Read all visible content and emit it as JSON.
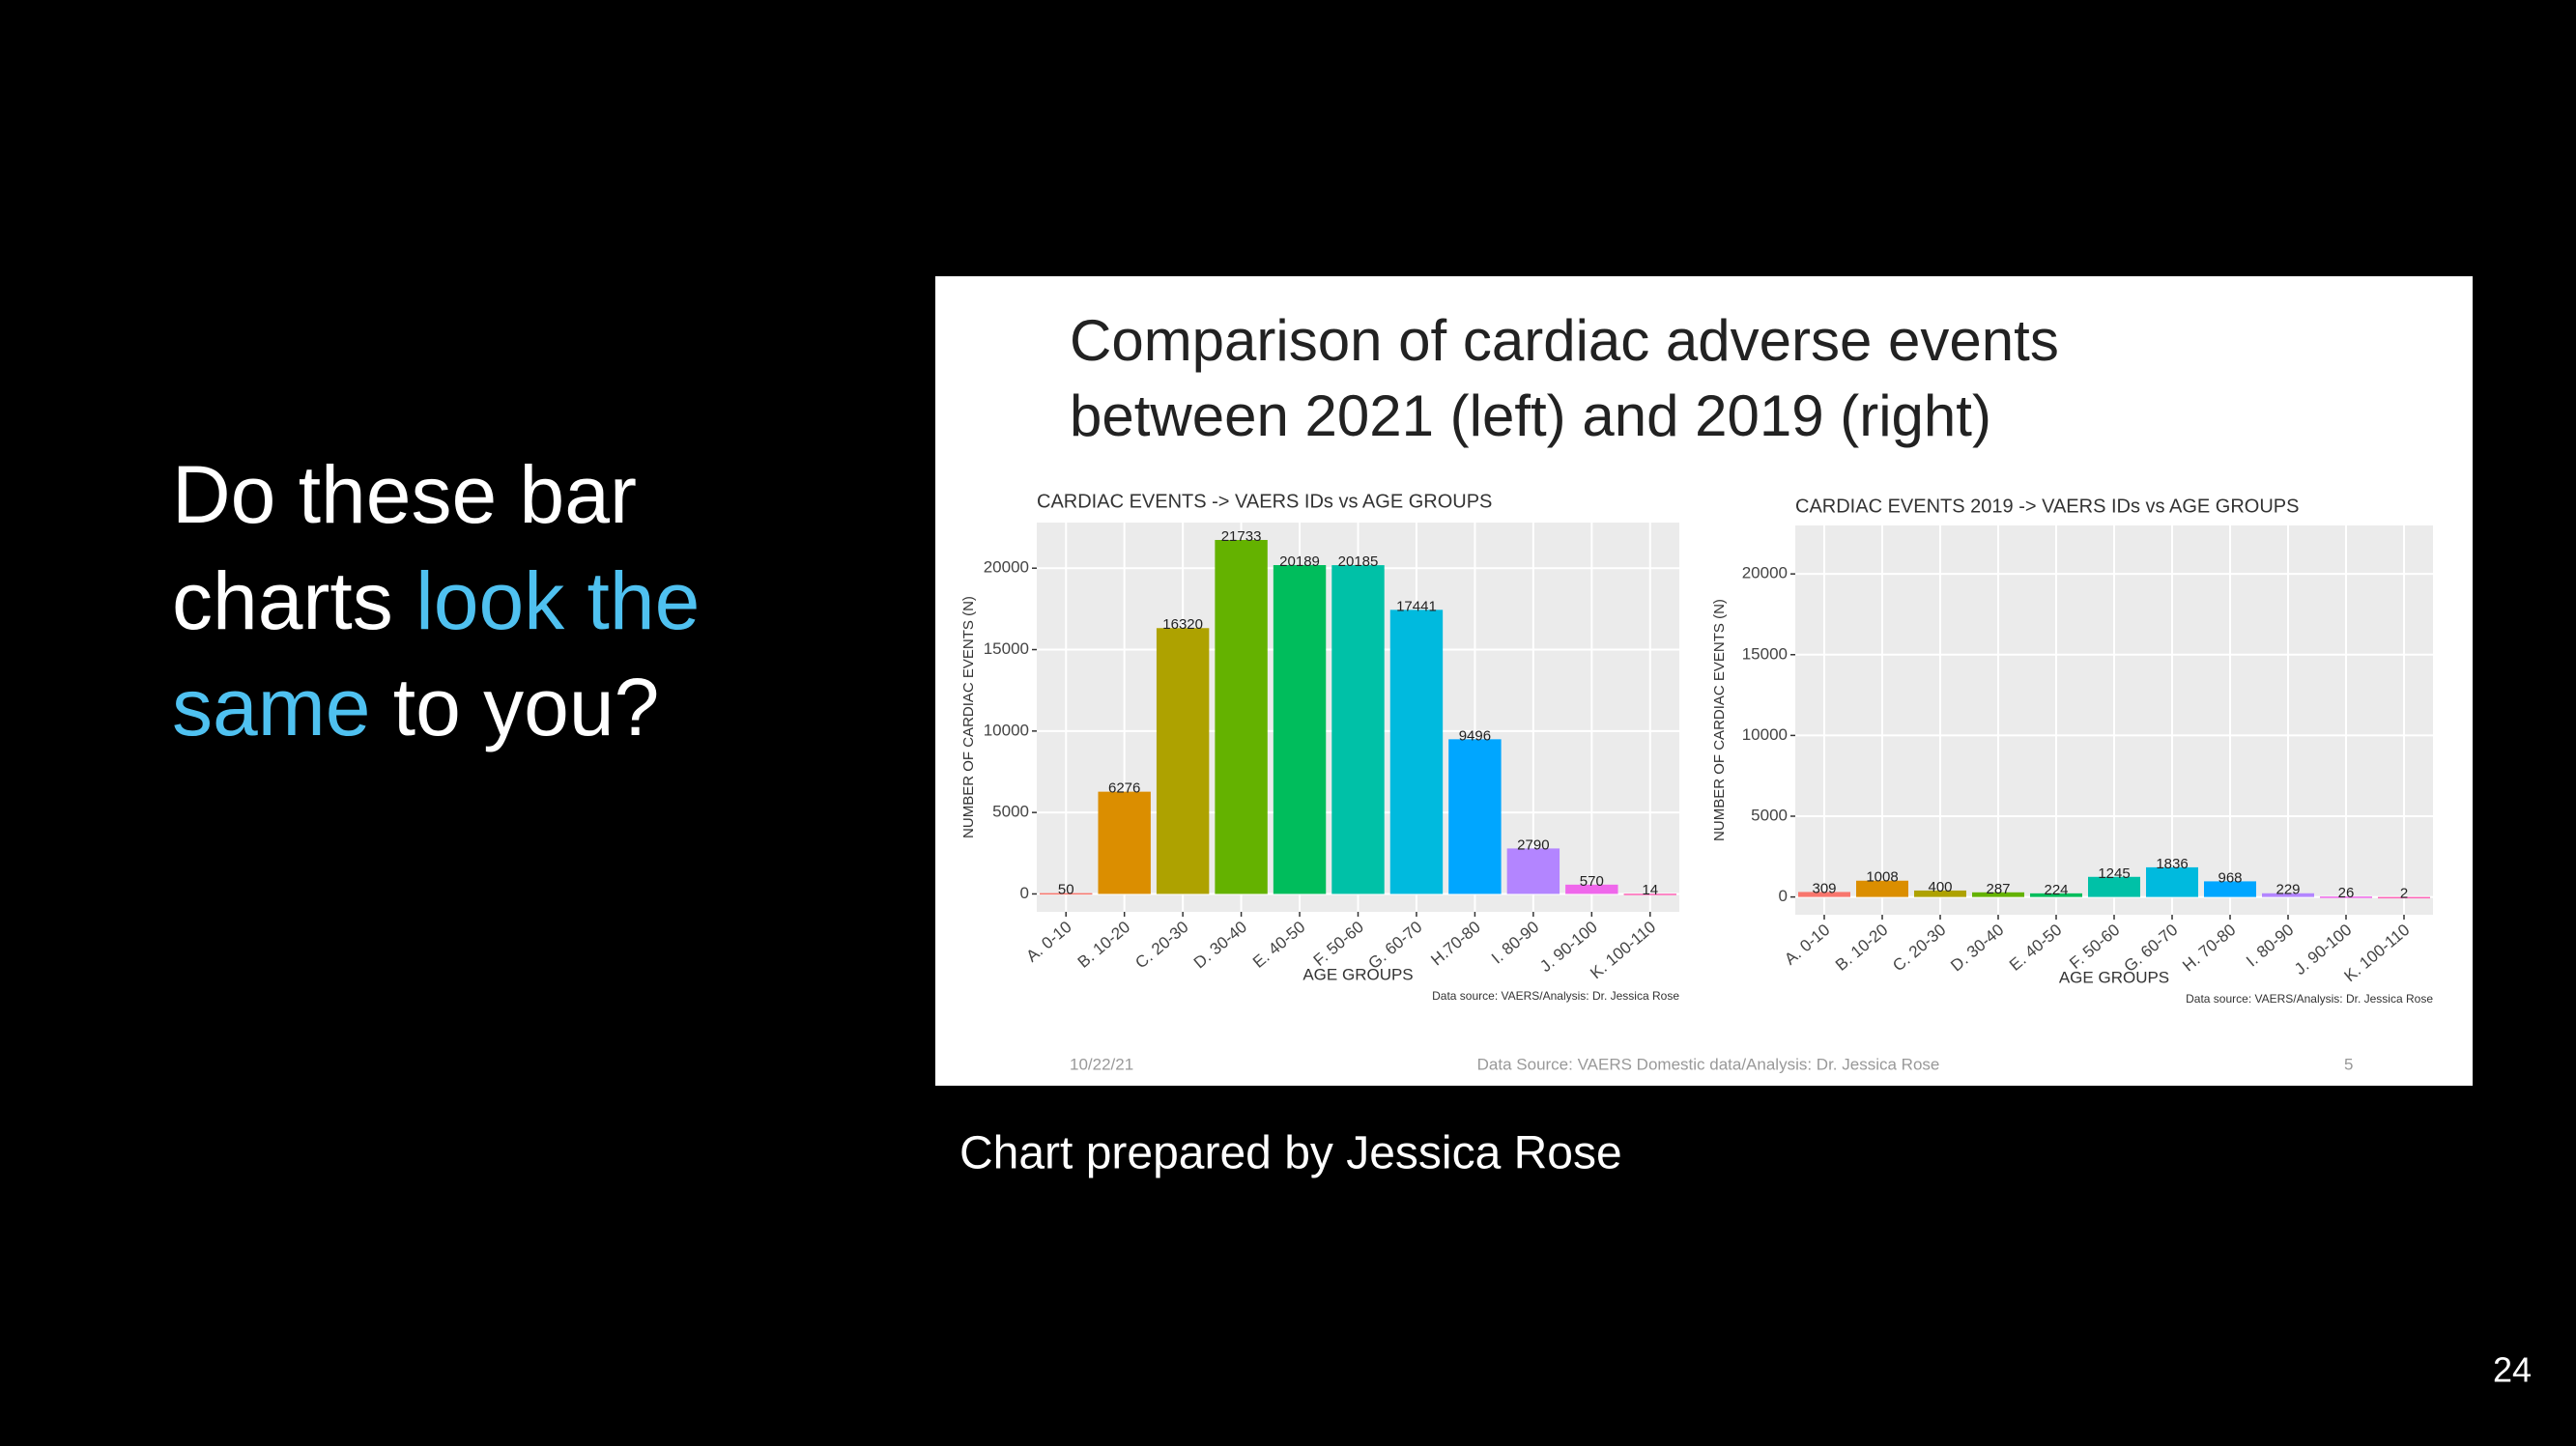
{
  "slide": {
    "question": [
      [
        {
          "text": "Do these bar",
          "highlight": false
        }
      ],
      [
        {
          "text": "charts ",
          "highlight": false
        },
        {
          "text": "look the",
          "highlight": true
        }
      ],
      [
        {
          "text": "same",
          "highlight": true
        },
        {
          "text": " to you?",
          "highlight": false
        }
      ]
    ],
    "highlight_color": "#4fc1f0",
    "caption": "Chart prepared by Jessica Rose",
    "page_number": "24"
  },
  "image": {
    "title": [
      "Comparison of cardiac adverse events",
      "between 2021 (left) and 2019 (right)"
    ],
    "footer_date": "10/22/21",
    "footer_source": "Data Source: VAERS Domestic data/Analysis: Dr. Jessica Rose",
    "footer_page": "5"
  },
  "chart_data": [
    {
      "type": "bar",
      "title": "CARDIAC EVENTS -> VAERS IDs vs AGE GROUPS",
      "x_label": "AGE GROUPS",
      "y_label": "NUMBER OF CARDIAC EVENTS (N)",
      "source": "Data source: VAERS/Analysis: Dr. Jessica Rose",
      "categories": [
        "A. 0-10",
        "B. 10-20",
        "C. 20-30",
        "D. 30-40",
        "E. 40-50",
        "F. 50-60",
        "G. 60-70",
        "H.70-80",
        "I. 80-90",
        "J. 90-100",
        "K. 100-110"
      ],
      "values": [
        50,
        6276,
        16320,
        21733,
        20189,
        20185,
        17441,
        9496,
        2790,
        570,
        14
      ],
      "colors": [
        "#F8766D",
        "#DB8E00",
        "#AEA200",
        "#64B200",
        "#00BD5C",
        "#00C1A7",
        "#00BADE",
        "#00A6FF",
        "#B385FF",
        "#EF67EB",
        "#FF63B6"
      ],
      "ylim": [
        -1100,
        22800
      ],
      "yticks": [
        0,
        5000,
        10000,
        15000,
        20000
      ],
      "grid": true
    },
    {
      "type": "bar",
      "title": "CARDIAC EVENTS 2019 -> VAERS IDs vs AGE GROUPS",
      "x_label": "AGE GROUPS",
      "y_label": "NUMBER OF CARDIAC EVENTS (N)",
      "source": "Data source: VAERS/Analysis: Dr. Jessica Rose",
      "categories": [
        "A. 0-10",
        "B. 10-20",
        "C. 20-30",
        "D. 30-40",
        "E. 40-50",
        "F. 50-60",
        "G. 60-70",
        "H. 70-80",
        "I. 80-90",
        "J. 90-100",
        "K. 100-110"
      ],
      "values": [
        309,
        1008,
        400,
        287,
        224,
        1245,
        1836,
        968,
        229,
        26,
        2
      ],
      "colors": [
        "#F8766D",
        "#DB8E00",
        "#AEA200",
        "#64B200",
        "#00BD5C",
        "#00C1A7",
        "#00BADE",
        "#00A6FF",
        "#B385FF",
        "#EF67EB",
        "#FF63B6"
      ],
      "ylim": [
        -1100,
        23000
      ],
      "yticks": [
        0,
        5000,
        10000,
        15000,
        20000
      ],
      "grid": true
    }
  ]
}
